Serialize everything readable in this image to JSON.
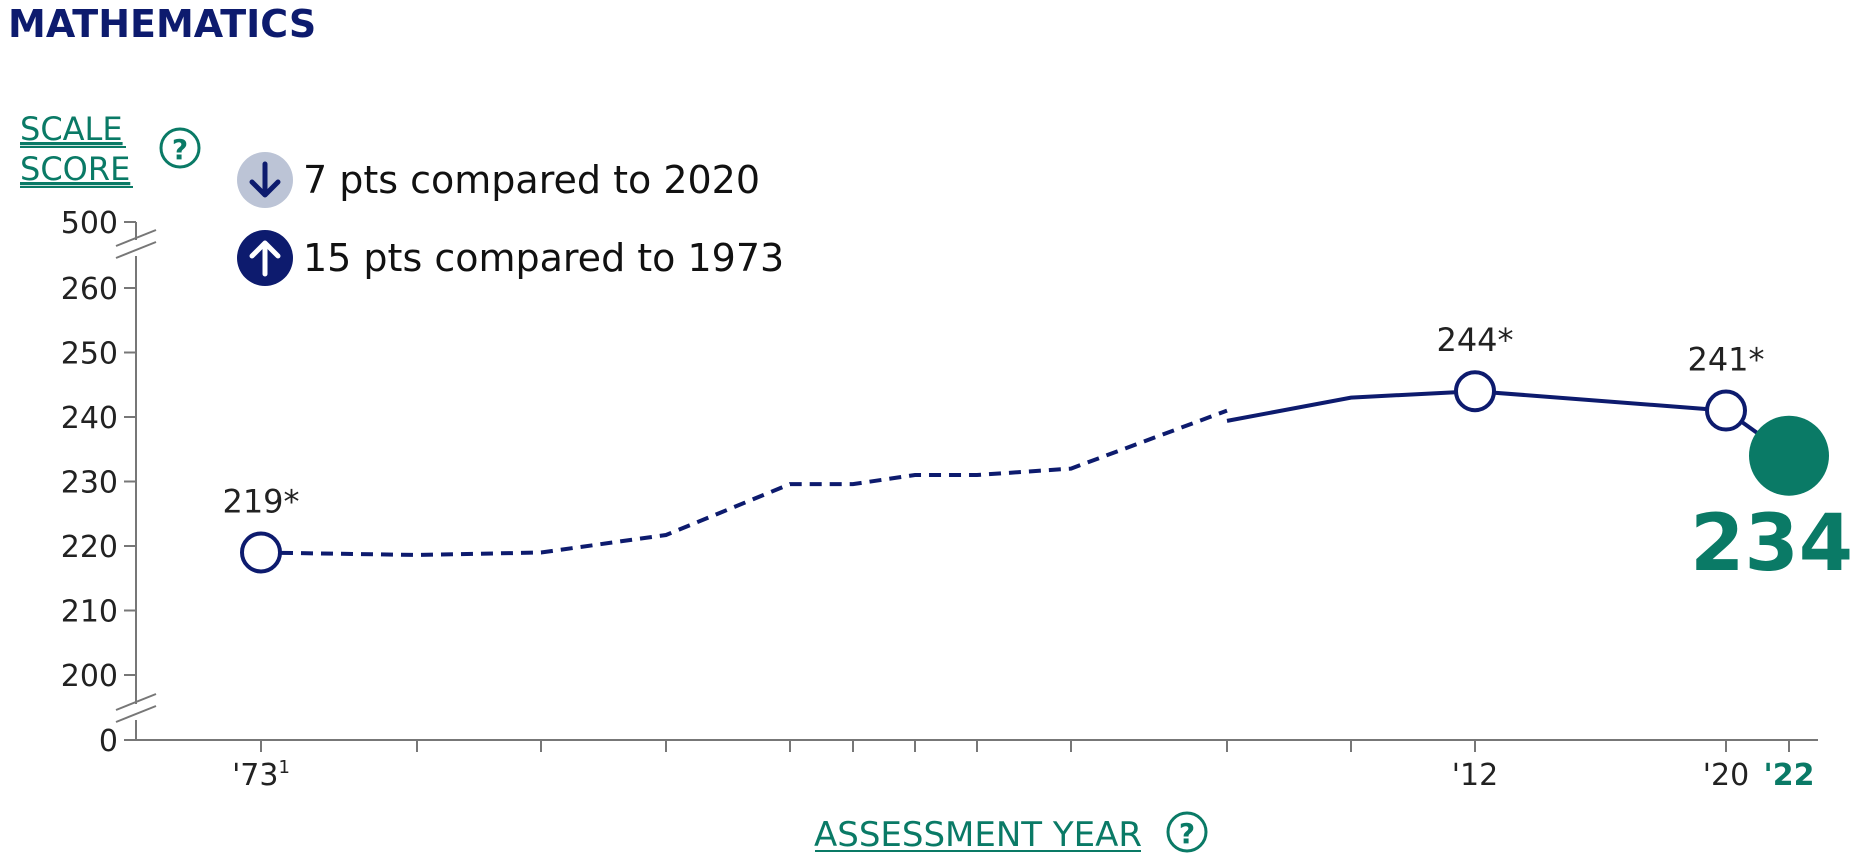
{
  "title": "MATHEMATICS",
  "ylabel": {
    "line1": "SCALE",
    "line2": "SCORE"
  },
  "xlabel": "ASSESSMENT YEAR",
  "help_icon": "question-circle-icon",
  "callouts": [
    {
      "icon": "arrow-down-icon",
      "text": "7 pts compared to 2020",
      "style": "muted"
    },
    {
      "icon": "arrow-up-icon",
      "text": "15 pts compared to 1973",
      "style": "solid"
    }
  ],
  "colors": {
    "navy": "#0d1b6e",
    "teal": "#0a7a66",
    "muted": "#bcc4d6",
    "axis": "#777777"
  },
  "chart_data": {
    "type": "line",
    "y_ticks": [
      0,
      200,
      210,
      220,
      230,
      240,
      250,
      260,
      500
    ],
    "y_tick_labels": [
      "0",
      "200",
      "210",
      "220",
      "230",
      "240",
      "250",
      "260",
      "500"
    ],
    "x_ticks": [
      1973,
      1978,
      1982,
      1986,
      1990,
      1992,
      1994,
      1996,
      1999,
      2004,
      2008,
      2012,
      2020,
      2022
    ],
    "x_tick_labels": [
      {
        "x": 1973,
        "text": "'73",
        "sup": "1"
      },
      {
        "x": 2012,
        "text": "'12",
        "sup": ""
      },
      {
        "x": 2020,
        "text": "'20",
        "sup": ""
      },
      {
        "x": 2022,
        "text": "'22",
        "sup": "",
        "bold": true
      }
    ],
    "series": [
      {
        "style": "dashed",
        "points": [
          [
            1973,
            219
          ],
          [
            1978,
            218.6
          ],
          [
            1982,
            219
          ],
          [
            1986,
            221.7
          ],
          [
            1990,
            229.6
          ],
          [
            1992,
            229.6
          ],
          [
            1994,
            231
          ],
          [
            1996,
            231
          ],
          [
            1999,
            232
          ],
          [
            2004,
            241
          ]
        ]
      },
      {
        "style": "solid",
        "points": [
          [
            2004,
            239.4
          ],
          [
            2008,
            243
          ],
          [
            2012,
            244
          ],
          [
            2020,
            241
          ],
          [
            2022,
            234
          ]
        ]
      }
    ],
    "labeled_points": [
      {
        "x": 1973,
        "y": 219,
        "label": "219*"
      },
      {
        "x": 2012,
        "y": 244,
        "label": "244*"
      },
      {
        "x": 2020,
        "y": 241,
        "label": "241*"
      }
    ],
    "highlight": {
      "x": 2022,
      "y": 234,
      "label": "234"
    }
  }
}
